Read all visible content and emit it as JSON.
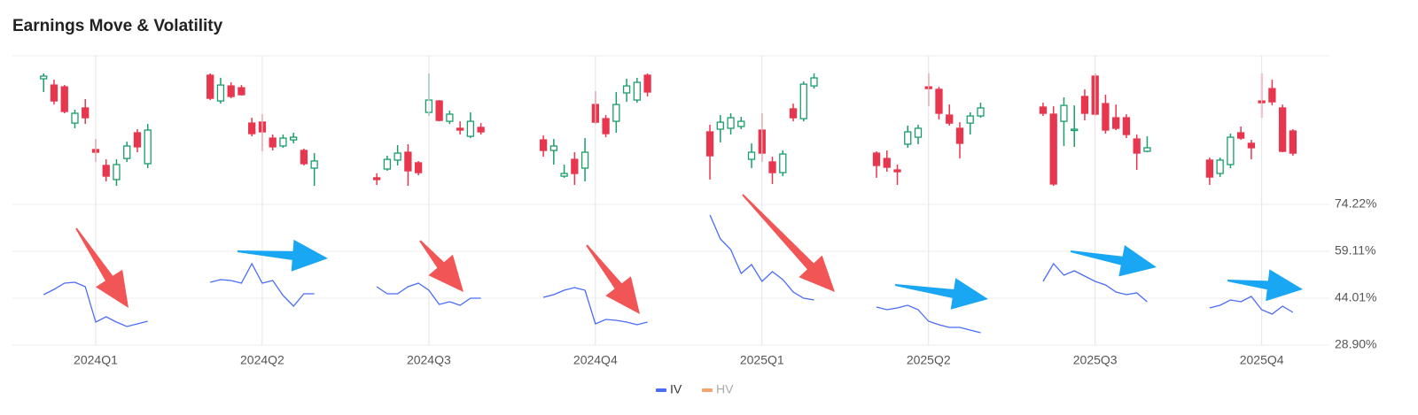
{
  "chart_data": [
    {
      "type": "candlestick",
      "title": "Earnings Move & Volatility",
      "up_color": "#1a9e6a",
      "down_color": "#e8364f",
      "xlim": [
        0,
        126.5
      ],
      "ylim": [
        0,
        100
      ],
      "x": [
        3,
        4,
        5,
        6,
        7,
        8,
        9,
        10,
        11,
        12,
        13,
        19,
        20,
        21,
        22,
        23,
        24,
        25,
        26,
        27,
        28,
        29,
        35,
        36,
        37,
        38,
        39,
        40,
        41,
        42,
        43,
        44,
        45,
        51,
        52,
        53,
        54,
        55,
        56,
        57,
        58,
        59,
        60,
        61,
        67,
        68,
        69,
        70,
        71,
        72,
        73,
        74,
        75,
        76,
        77,
        83,
        84,
        85,
        86,
        87,
        88,
        89,
        90,
        91,
        92,
        93,
        99,
        100,
        101,
        102,
        103,
        104,
        105,
        106,
        107,
        108,
        109,
        115,
        116,
        117,
        118,
        119,
        120,
        121,
        122,
        123
      ],
      "open": [
        84.5,
        80.3,
        79.1,
        54.7,
        64.9,
        36.9,
        26.2,
        16.7,
        30.9,
        48.2,
        27.4,
        86.9,
        69.6,
        79.7,
        78.5,
        54.7,
        55.4,
        44.6,
        39.3,
        43.4,
        36.3,
        24.4,
        17.9,
        23.8,
        29.8,
        35.1,
        28.0,
        61.9,
        69.6,
        55.9,
        51.2,
        45.8,
        51.8,
        43.4,
        36.3,
        19.0,
        30.3,
        24.4,
        67.2,
        57.7,
        55.9,
        75.0,
        70.2,
        86.9,
        48.8,
        50.6,
        51.2,
        52.4,
        30.3,
        50.0,
        28.6,
        21.4,
        64.3,
        57.7,
        79.7,
        34.5,
        30.9,
        23.2,
        40.5,
        45.2,
        79.1,
        77.4,
        60.1,
        51.2,
        54.7,
        59.5,
        65.5,
        60.7,
        55.9,
        50.6,
        72.6,
        86.3,
        67.8,
        58.3,
        58.3,
        44.0,
        35.7,
        29.8,
        20.8,
        26.8,
        48.2,
        41.1,
        69.6,
        77.9,
        64.9,
        49.4
      ],
      "high": [
        88.1,
        83.9,
        80.3,
        63.7,
        70.8,
        44.0,
        30.3,
        30.3,
        42.2,
        50.6,
        54.1,
        88.1,
        85.1,
        82.1,
        80.3,
        58.3,
        60.7,
        47.0,
        47.0,
        48.2,
        37.5,
        34.5,
        20.8,
        32.7,
        39.9,
        40.5,
        29.2,
        88.1,
        70.2,
        63.1,
        55.9,
        61.9,
        54.7,
        46.4,
        44.0,
        26.8,
        35.1,
        44.6,
        76.2,
        60.1,
        75.6,
        84.5,
        85.1,
        88.1,
        53.6,
        60.1,
        61.3,
        58.9,
        41.1,
        61.3,
        32.1,
        36.3,
        67.8,
        82.7,
        88.1,
        35.7,
        36.3,
        26.8,
        53.0,
        53.6,
        88.1,
        79.1,
        67.2,
        55.3,
        61.9,
        68.4,
        68.4,
        66.0,
        72.0,
        66.6,
        77.4,
        88.1,
        73.8,
        67.2,
        60.7,
        47.0,
        45.8,
        31.5,
        31.5,
        47.6,
        52.4,
        43.4,
        88.1,
        83.9,
        67.2,
        50.6
      ],
      "low": [
        75.6,
        67.2,
        61.3,
        51.2,
        54.1,
        28.6,
        15.5,
        12.5,
        28.6,
        35.1,
        24.4,
        70.2,
        67.8,
        71.4,
        73.2,
        45.8,
        35.7,
        36.3,
        38.1,
        41.1,
        26.2,
        12.5,
        13.1,
        22.6,
        26.2,
        12.5,
        19.6,
        59.5,
        55.9,
        54.1,
        47.0,
        44.6,
        47.0,
        32.1,
        26.8,
        17.9,
        13.1,
        15.5,
        54.1,
        45.2,
        48.2,
        69.0,
        68.4,
        72.6,
        16.7,
        41.7,
        47.0,
        50.6,
        24.4,
        28.6,
        13.7,
        19.0,
        55.9,
        55.9,
        77.9,
        17.9,
        22.0,
        13.1,
        38.1,
        40.5,
        66.0,
        57.1,
        53.0,
        30.9,
        47.0,
        58.3,
        59.5,
        12.5,
        39.3,
        38.7,
        56.5,
        59.5,
        47.6,
        50.0,
        44.6,
        23.2,
        35.1,
        13.1,
        18.4,
        24.4,
        43.4,
        30.3,
        58.3,
        66.6,
        35.1,
        32.7
      ],
      "close": [
        86.3,
        69.6,
        62.5,
        61.3,
        58.3,
        35.1,
        19.0,
        26.8,
        39.3,
        38.7,
        50.0,
        71.4,
        80.3,
        72.6,
        73.8,
        47.6,
        48.8,
        38.7,
        44.6,
        45.2,
        27.4,
        29.2,
        16.7,
        30.3,
        34.5,
        22.6,
        21.4,
        70.2,
        56.5,
        60.7,
        50.0,
        55.9,
        48.8,
        36.3,
        39.3,
        20.8,
        20.8,
        35.1,
        55.3,
        47.6,
        67.2,
        79.7,
        82.1,
        75.6,
        32.7,
        55.3,
        58.3,
        55.9,
        35.1,
        34.5,
        21.4,
        33.9,
        58.3,
        80.9,
        85.1,
        26.2,
        25.0,
        22.0,
        48.8,
        51.2,
        77.9,
        61.3,
        54.7,
        41.1,
        59.5,
        64.9,
        61.3,
        13.7,
        66.6,
        50.6,
        61.3,
        60.7,
        50.0,
        51.2,
        47.0,
        34.5,
        38.1,
        18.4,
        29.8,
        45.2,
        44.6,
        38.1,
        68.4,
        69.0,
        35.7,
        34.5
      ]
    },
    {
      "type": "line",
      "grid": true,
      "xlim": [
        0,
        126.5
      ],
      "xticks": [
        {
          "value": 8,
          "label": "2024Q1"
        },
        {
          "value": 24,
          "label": "2024Q2"
        },
        {
          "value": 40,
          "label": "2024Q3"
        },
        {
          "value": 56,
          "label": "2024Q4"
        },
        {
          "value": 72,
          "label": "2025Q1"
        },
        {
          "value": 88,
          "label": "2025Q2"
        },
        {
          "value": 104,
          "label": "2025Q3"
        },
        {
          "value": 120,
          "label": "2025Q4"
        }
      ],
      "ylim": [
        28.9,
        74.22
      ],
      "yticks": [
        {
          "value": 74.22,
          "label": "74.22%"
        },
        {
          "value": 59.11,
          "label": "59.11%"
        },
        {
          "value": 44.01,
          "label": "44.01%"
        },
        {
          "value": 28.9,
          "label": "28.90%"
        }
      ],
      "x": [
        3,
        4,
        5,
        6,
        7,
        8,
        9,
        10,
        11,
        12,
        13,
        null,
        19,
        20,
        21,
        22,
        23,
        24,
        25,
        26,
        27,
        28,
        29,
        null,
        35,
        36,
        37,
        38,
        39,
        40,
        41,
        42,
        43,
        44,
        45,
        null,
        51,
        52,
        53,
        54,
        55,
        56,
        57,
        58,
        59,
        60,
        61,
        null,
        67,
        68,
        69,
        70,
        71,
        72,
        73,
        74,
        75,
        76,
        77,
        null,
        83,
        84,
        85,
        86,
        87,
        88,
        89,
        90,
        91,
        92,
        93,
        null,
        99,
        100,
        101,
        102,
        103,
        104,
        105,
        106,
        107,
        108,
        109,
        null,
        115,
        116,
        117,
        118,
        119,
        120,
        121,
        122,
        123
      ],
      "series": [
        {
          "name": "IV",
          "color": "#4a6cf7",
          "visible": true,
          "values": [
            45.15,
            46.86,
            48.86,
            49.14,
            47.72,
            36.31,
            38.02,
            36.31,
            34.89,
            35.74,
            36.6,
            null,
            49.14,
            50.0,
            49.71,
            48.86,
            55.13,
            48.86,
            49.71,
            44.87,
            41.44,
            45.44,
            45.44,
            null,
            47.72,
            45.44,
            45.44,
            47.72,
            48.86,
            46.58,
            42.01,
            42.87,
            41.73,
            44.01,
            44.01,
            null,
            44.3,
            45.15,
            46.58,
            47.43,
            46.58,
            35.74,
            37.16,
            36.88,
            36.31,
            35.46,
            36.31,
            null,
            70.81,
            63.11,
            59.69,
            52.0,
            54.84,
            49.43,
            52.57,
            50.0,
            46.01,
            44.01,
            43.44,
            null,
            41.16,
            40.3,
            40.87,
            41.73,
            40.3,
            36.6,
            35.46,
            34.6,
            34.6,
            33.75,
            32.89,
            null,
            49.43,
            55.13,
            51.42,
            52.85,
            51.14,
            49.43,
            48.29,
            46.01,
            45.15,
            45.72,
            42.87,
            null,
            40.87,
            41.73,
            43.44,
            42.87,
            44.58,
            40.3,
            38.87,
            41.44,
            39.45
          ]
        },
        {
          "name": "HV",
          "color": "#f5a46c",
          "visible": false,
          "values": [
            null,
            null,
            null,
            null,
            null,
            null,
            null,
            null,
            null,
            null,
            null,
            null,
            null,
            null,
            null,
            null,
            null,
            null,
            null,
            null,
            null,
            null,
            null,
            null,
            null,
            null,
            null,
            null,
            null,
            null,
            null,
            null,
            null,
            null,
            null,
            null,
            null,
            null,
            null,
            null,
            null,
            null,
            null,
            null,
            null,
            null,
            null,
            null,
            null,
            null,
            null,
            null,
            null,
            null,
            null,
            null,
            null,
            null,
            null,
            null,
            null,
            null,
            null,
            null,
            null,
            null,
            null,
            null,
            null,
            null,
            null,
            null,
            null,
            null,
            null,
            null,
            null,
            null,
            null,
            null,
            null,
            null,
            null,
            null,
            null,
            null,
            null,
            null,
            null,
            null,
            null,
            null,
            null
          ]
        }
      ]
    }
  ]
}
